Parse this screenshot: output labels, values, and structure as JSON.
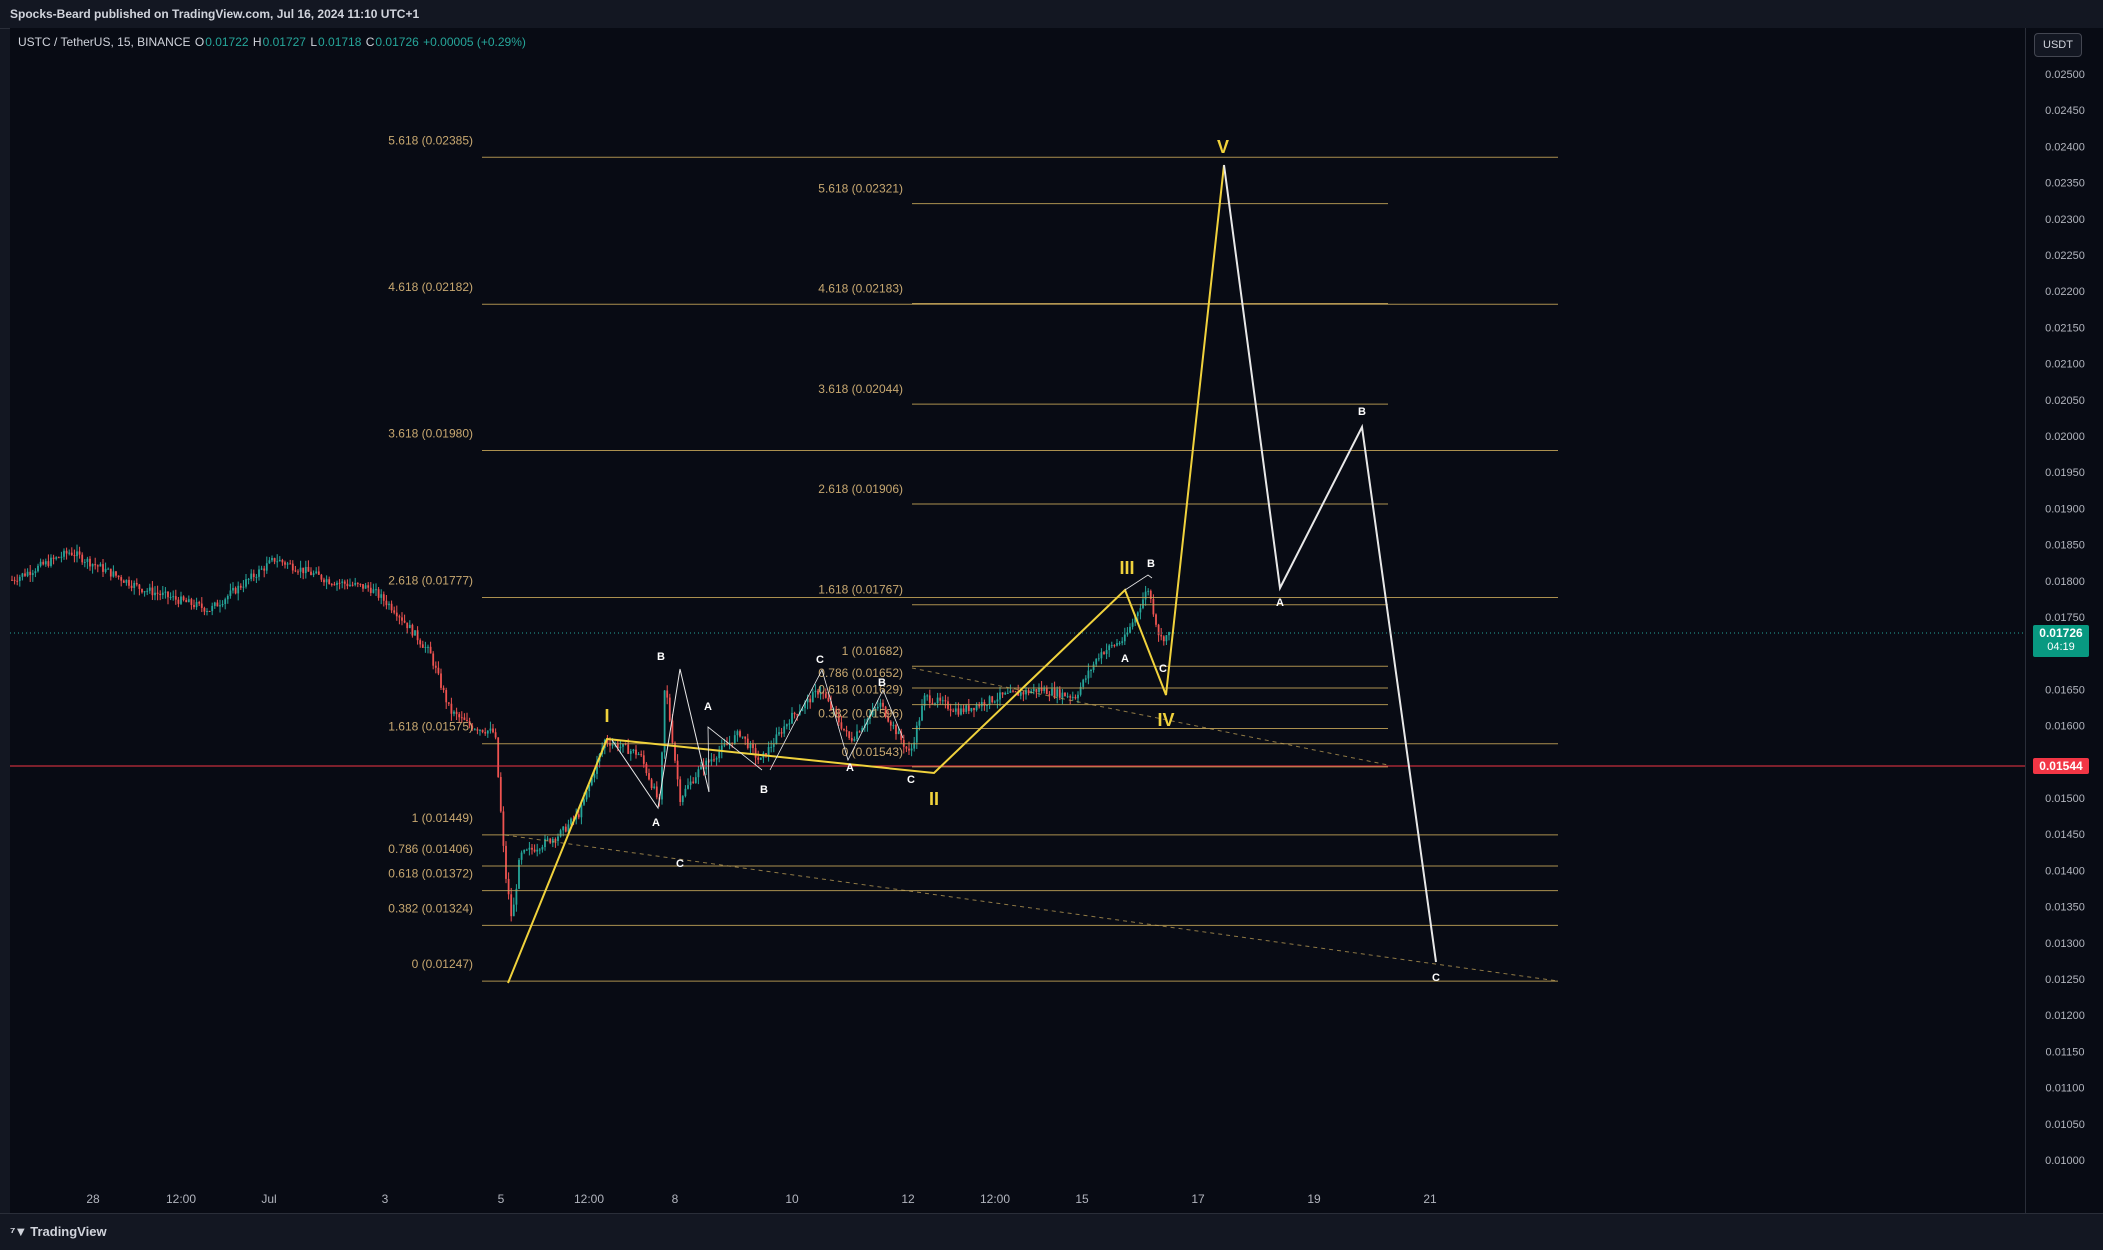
{
  "header": {
    "publish_text": "Spocks-Beard published on TradingView.com, Jul 16, 2024 11:10 UTC+1"
  },
  "symbol": {
    "name": "USTC / TetherUS, 15, BINANCE",
    "o_label": "O",
    "o": "0.01722",
    "h_label": "H",
    "h": "0.01727",
    "l_label": "L",
    "l": "0.01718",
    "c_label": "C",
    "c": "0.01726",
    "change": "+0.00005 (+0.29%)"
  },
  "currency_button": "USDT",
  "price_axis": {
    "labels": [
      "0.02500",
      "0.02450",
      "0.02400",
      "0.02350",
      "0.02300",
      "0.02250",
      "0.02200",
      "0.02150",
      "0.02100",
      "0.02050",
      "0.02000",
      "0.01950",
      "0.01900",
      "0.01850",
      "0.01800",
      "0.01750",
      "0.01650",
      "0.01600",
      "0.01550",
      "0.01500",
      "0.01450",
      "0.01400",
      "0.01350",
      "0.01300",
      "0.01250",
      "0.01200",
      "0.01150",
      "0.01100",
      "0.01050",
      "0.01000"
    ],
    "current_price": "0.01726",
    "countdown": "04:19",
    "red_line_price": "0.01544"
  },
  "time_axis": {
    "labels": [
      "28",
      "12:00",
      "Jul",
      "3",
      "5",
      "12:00",
      "8",
      "10",
      "12",
      "12:00",
      "15",
      "17",
      "19",
      "21"
    ]
  },
  "fib_left": {
    "labels": [
      "5.618 (0.02385)",
      "4.618 (0.02182)",
      "3.618 (0.01980)",
      "2.618 (0.01777)",
      "1.618 (0.01575)",
      "1 (0.01449)",
      "0.786 (0.01406)",
      "0.618 (0.01372)",
      "0.382 (0.01324)",
      "0 (0.01247)"
    ]
  },
  "fib_right": {
    "labels": [
      "5.618 (0.02321)",
      "4.618 (0.02183)",
      "3.618 (0.02044)",
      "2.618 (0.01906)",
      "1.618 (0.01767)",
      "1 (0.01682)",
      "0.786 (0.01652)",
      "0.618 (0.01629)",
      "0.382 (0.01596)",
      "0 (0.01543)"
    ]
  },
  "wave_labels": {
    "major": [
      "I",
      "II",
      "III",
      "IV",
      "V"
    ],
    "minor": [
      "A",
      "B",
      "C",
      "A",
      "B",
      "C",
      "A",
      "B",
      "C",
      "A",
      "B",
      "C",
      "A",
      "B",
      "C"
    ]
  },
  "footer": {
    "logo_text": "TradingView"
  },
  "colors": {
    "background": "#080b14",
    "fib_line": "#c8a85a",
    "fib_text": "#c8a870",
    "wave_yellow": "#f0d23c",
    "wave_white": "#e8e8e8",
    "up": "#26a69a",
    "down": "#ef5350",
    "red_line": "#f23645",
    "current_badge": "#089981"
  }
}
